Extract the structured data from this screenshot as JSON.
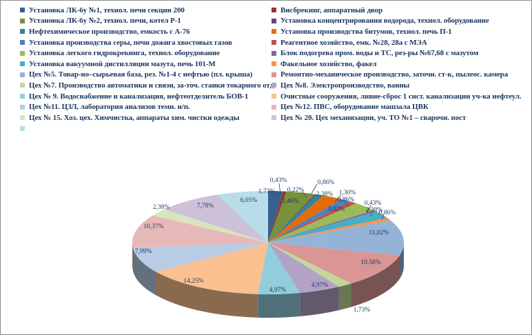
{
  "page": {
    "background": "#FFFFFF",
    "border_color": "#8C8C8C",
    "legend_text_color": "#17365D",
    "label_text_color": "#17365D"
  },
  "chart_data": {
    "type": "pie",
    "is_3d": true,
    "title": "",
    "unit": "%",
    "value_format": "0,00%",
    "legend_position": "top",
    "legend_columns": 2,
    "slices": [
      {
        "label": "Установка ЛК-6у №1, технол. печи секции 200",
        "value": 1.73,
        "color": "#376092"
      },
      {
        "label": "Висбрекинг, аппаратный двор",
        "value": 0.43,
        "color": "#943634"
      },
      {
        "label": "Установка ЛК-6у №2, технол. печи, котел Р-1",
        "value": 3.46,
        "color": "#76923C"
      },
      {
        "label": "Установка концентрирования водорода, технол. оборудование",
        "value": 0.22,
        "color": "#5F497A"
      },
      {
        "label": "Нефтехимическое производство, емкость с А-76",
        "value": 0.86,
        "color": "#31849B"
      },
      {
        "label": "Установка производства битумов, технол. печь П-1",
        "value": 2.38,
        "color": "#E36C0A"
      },
      {
        "label": "Установка производства серы, печи дожига хвостовых газов",
        "value": 1.3,
        "color": "#4F81BD"
      },
      {
        "label": "Реагентное хозяйство, емк. №28, 28а с МЭА",
        "value": 0.86,
        "color": "#C0504D"
      },
      {
        "label": "Установка легкого гидрокрекинга, технол. оборудование",
        "value": 3.02,
        "color": "#9BBB59"
      },
      {
        "label": "Блок подогрева пром. воды и ТС, рез-ры №67,68 с мазутом",
        "value": 0.43,
        "color": "#8064A2"
      },
      {
        "label": "Установка вакуумной дистилляции мазута, печь 101-М",
        "value": 2.38,
        "color": "#4BACC6"
      },
      {
        "label": "Факельное хозяйство, факел",
        "value": 0.86,
        "color": "#F79646"
      },
      {
        "label": "Цех №5. Товар-но–сырьевая база, рез. №1-4 с нефтью (пл. крыша)",
        "value": 11.02,
        "color": "#95B3D7"
      },
      {
        "label": "Ремонтно-механическое производство, заточн. ст-к, пылеос. камера",
        "value": 10.58,
        "color": "#D99694"
      },
      {
        "label": "Цех №7. Производство автоматики и связи, за-точ. станки токарного отд.",
        "value": 1.73,
        "color": "#C3D69B"
      },
      {
        "label": "Цех №8. Электропроизводство, ванны",
        "value": 4.97,
        "color": "#B2A2C7"
      },
      {
        "label": "Цех № 9. Водоснабжение и канализация, нефтеотделитель БОВ-1",
        "value": 4.97,
        "color": "#92CDDC"
      },
      {
        "label": "Очистные сооружения, ливне-сброс 1 сист. канализации уч-ка нефтеул.",
        "value": 14.25,
        "color": "#FAC08F"
      },
      {
        "label": "Цех №11. ЦЗЛ, лаборатория анализов темн. н/п.",
        "value": 7.99,
        "color": "#B8CCE4"
      },
      {
        "label": "Цех №12. ПВС, оборудование машзала ЦВК",
        "value": 10.37,
        "color": "#E6B9B8"
      },
      {
        "label": "Цех № 15. Хоз. цех. Химчистка, аппараты хим. чистки одежды",
        "value": 2.38,
        "color": "#D7E4BC"
      },
      {
        "label": "Цех № 20. Цех механизации, уч. ТО №1 – сварочн. пост",
        "value": 7.78,
        "color": "#CCC1D9"
      },
      {
        "label": "",
        "value": 6.05,
        "color": "#B7DEE8"
      }
    ]
  }
}
